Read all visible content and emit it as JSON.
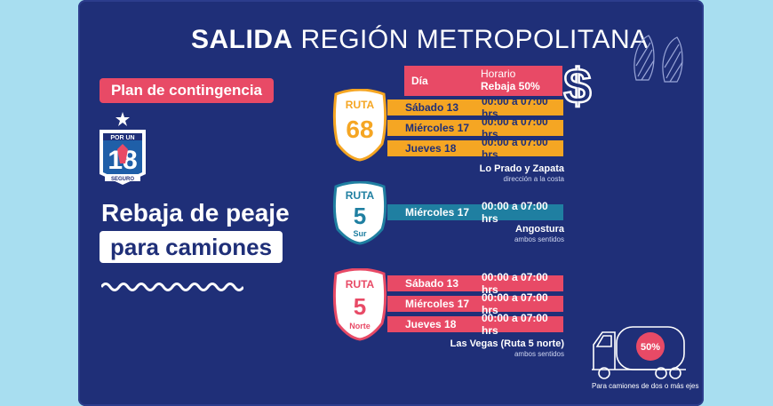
{
  "title": {
    "bold": "SALIDA",
    "rest": "REGIÓN METROPOLITANA"
  },
  "contingency_label": "Plan de contingencia",
  "logo": {
    "top_text": "POR UN",
    "number": "18",
    "bottom_text": "SEGURO"
  },
  "headline": {
    "line1": "Rebaja de peaje",
    "line2": "para camiones"
  },
  "table_header": {
    "day": "Día",
    "schedule": "Horario",
    "discount": "Rebaja 50%"
  },
  "routes": [
    {
      "sign_word": "RUTA",
      "number": "68",
      "suffix": "",
      "rows": [
        {
          "day": "Sábado 13",
          "time": "00:00 a 07:00 hrs"
        },
        {
          "day": "Miércoles 17",
          "time": "00:00 a 07:00 hrs"
        },
        {
          "day": "Jueves 18",
          "time": "00:00 a 07:00 hrs"
        }
      ],
      "place": "Lo Prado y  Zapata",
      "place_sub": "dirección a la costa",
      "color": "#f5a623"
    },
    {
      "sign_word": "RUTA",
      "number": "5",
      "suffix": "Sur",
      "rows": [
        {
          "day": "Miércoles 17",
          "time": "00:00 a 07:00 hrs"
        }
      ],
      "place": "Angostura",
      "place_sub": "ambos sentidos",
      "color": "#1f7fa1"
    },
    {
      "sign_word": "RUTA",
      "number": "5",
      "suffix": "Norte",
      "rows": [
        {
          "day": "Sábado 13",
          "time": "00:00 a 07:00 hrs"
        },
        {
          "day": "Miércoles 17",
          "time": "00:00 a 07:00 hrs"
        },
        {
          "day": "Jueves 18",
          "time": "00:00 a 07:00 hrs"
        }
      ],
      "place": "Las Vegas (Ruta 5 norte)",
      "place_sub": "ambos sentidos",
      "color": "#e84a66"
    }
  ],
  "truck": {
    "badge": "50%",
    "note": "Para camiones de dos o más ejes"
  },
  "icons": [
    "dollar-icon",
    "fish-icon",
    "truck-icon",
    "star-icon"
  ],
  "colors": {
    "background": "#1f2f78",
    "accent_pink": "#e84a66",
    "accent_yellow": "#f5a623",
    "accent_teal": "#1f7fa1"
  }
}
